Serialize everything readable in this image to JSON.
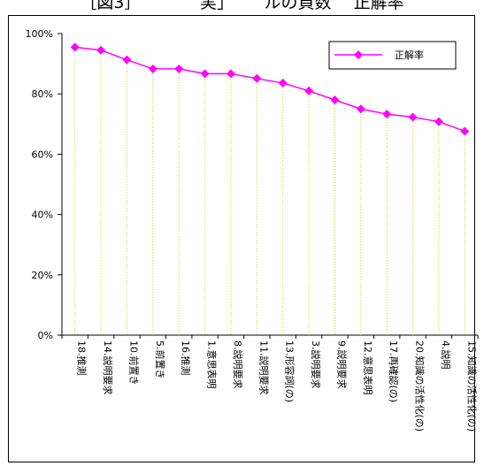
{
  "header": {
    "caption": "［図3］　　　　実」　　 ルの頁数　 正解率"
  },
  "chart_data": {
    "type": "line",
    "categories": [
      "18.推測",
      "14.説明要求",
      "10.前置き",
      "5.前置き",
      "16.推測",
      "1.意思表明",
      "8.説明要求",
      "11.説明要求",
      "13.形容詞(の)",
      "3.説明要求",
      "9.説明要求",
      "12.意思表明",
      "17.再確認(の)",
      "20.知識の活性化(の)",
      "4.説明",
      "15.知識の活性化(の)"
    ],
    "series": [
      {
        "name": "正解率",
        "values": [
          95.5,
          94.5,
          91.3,
          88.3,
          88.3,
          86.7,
          86.7,
          85.1,
          83.6,
          81.0,
          78.0,
          75.0,
          73.3,
          72.3,
          70.8,
          67.6
        ]
      }
    ],
    "y_ticks": [
      "0%",
      "20%",
      "40%",
      "60%",
      "80%",
      "100%"
    ],
    "ylim": [
      0,
      100
    ],
    "legend_position": "top-right",
    "line_color": "#ff00ff",
    "drop_line_color": "#cccc00",
    "grid": false
  }
}
